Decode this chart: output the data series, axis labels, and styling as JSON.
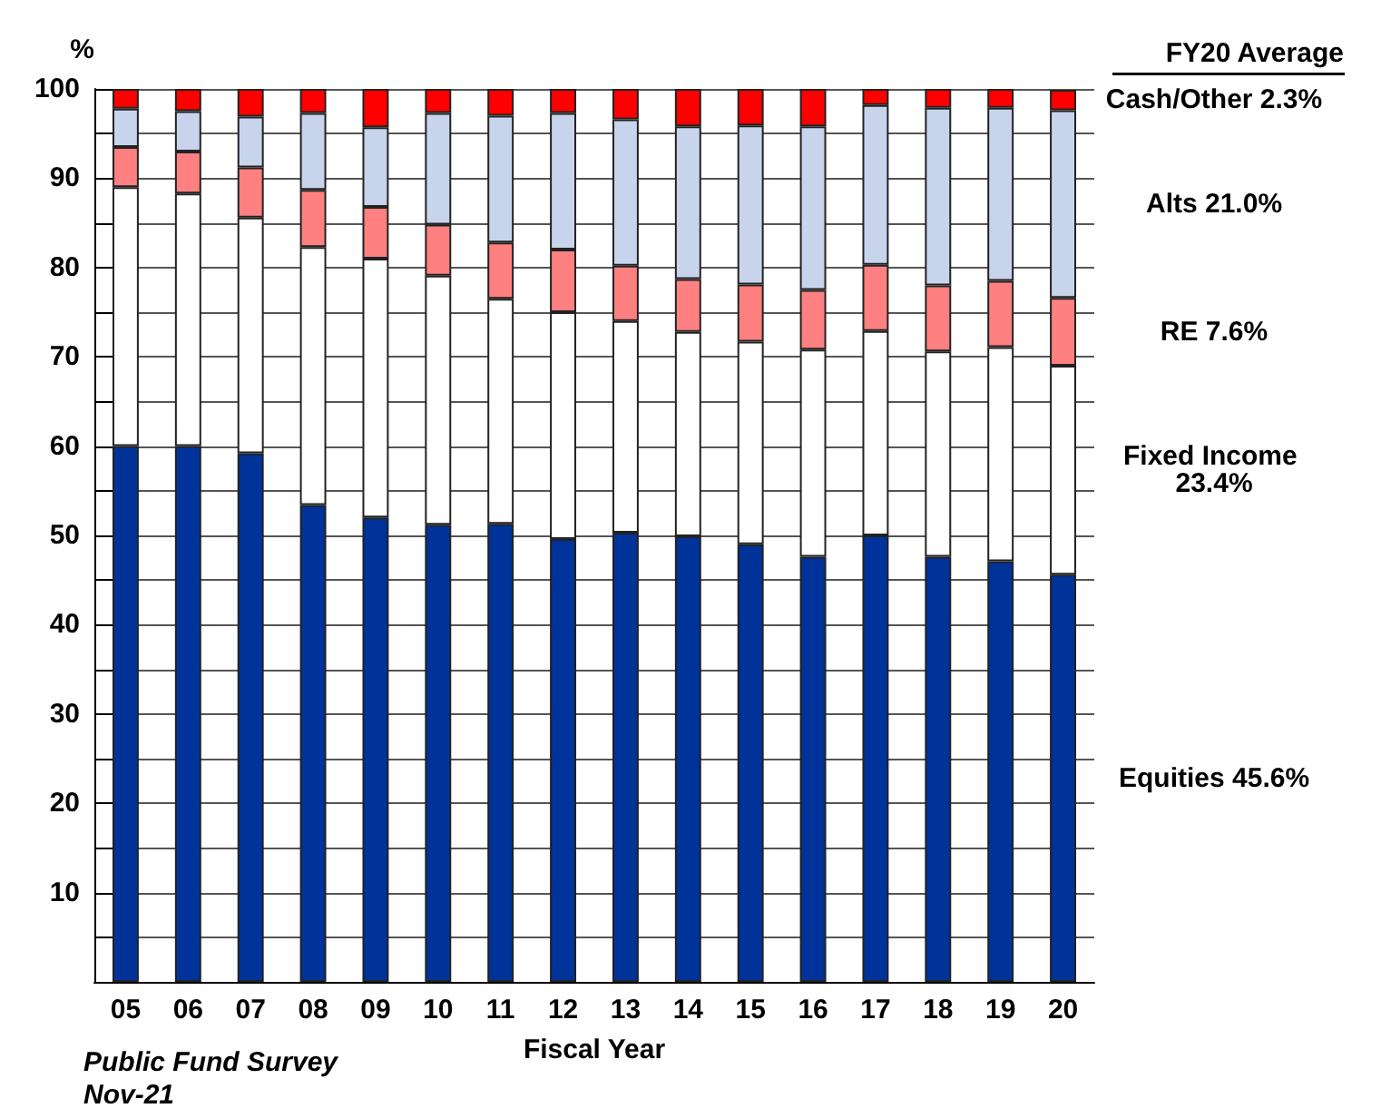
{
  "chart_data": {
    "type": "bar",
    "stacked": true,
    "ylabel": "%",
    "xlabel": "Fiscal Year",
    "legend_title": "FY20 Average",
    "categories": [
      "05",
      "06",
      "07",
      "08",
      "09",
      "10",
      "11",
      "12",
      "13",
      "14",
      "15",
      "16",
      "17",
      "18",
      "19",
      "20"
    ],
    "series": [
      {
        "name": "Equities 45.6%",
        "color": "#003399",
        "values": [
          60,
          60,
          59.2,
          53.4,
          52,
          51.2,
          51.3,
          49.6,
          50.3,
          49.9,
          49,
          47.6,
          50,
          47.6,
          47.1,
          45.6
        ]
      },
      {
        "name": "Fixed Income 23.4%",
        "color": "#ffffff",
        "values": [
          29,
          28.3,
          26.4,
          28.9,
          29,
          27.9,
          25.2,
          25.4,
          23.7,
          22.9,
          22.7,
          23.2,
          22.9,
          23,
          24,
          23.4
        ]
      },
      {
        "name": "RE 7.6%",
        "color": "#ff8080",
        "values": [
          4.5,
          4.7,
          5.6,
          6.4,
          5.8,
          5.7,
          6.3,
          7,
          6.2,
          5.9,
          6.4,
          6.7,
          7.4,
          7.4,
          7.4,
          7.6
        ]
      },
      {
        "name": "Alts 21.0%",
        "color": "#c8d4ec",
        "values": [
          4.3,
          4.5,
          5.7,
          8.6,
          8.9,
          12.5,
          14.2,
          15.3,
          16.4,
          17.1,
          17.8,
          18.3,
          17.9,
          19.9,
          19.4,
          21.0
        ]
      },
      {
        "name": "Cash/Other 2.3%",
        "color": "#ff0000",
        "values": [
          2.2,
          2.5,
          3.1,
          2.7,
          4.3,
          2.7,
          3,
          2.7,
          3.4,
          4.2,
          4.1,
          4.2,
          1.8,
          2.1,
          2.1,
          2.3
        ]
      }
    ],
    "ylim": [
      0,
      100
    ],
    "yticks": [
      {
        "value": 0,
        "label": null
      },
      {
        "value": 5,
        "label": null
      },
      10,
      {
        "value": 15,
        "label": null
      },
      20,
      {
        "value": 25,
        "label": null
      },
      30,
      {
        "value": 35,
        "label": null
      },
      40,
      {
        "value": 45,
        "label": null
      },
      50,
      {
        "value": 55,
        "label": null
      },
      60,
      {
        "value": 65,
        "label": null
      },
      70,
      {
        "value": 75,
        "label": null
      },
      80,
      {
        "value": 85,
        "label": null
      },
      90,
      {
        "value": 95,
        "label": null
      },
      100
    ],
    "grid": true,
    "legend": "right",
    "annotations": [
      "Public Fund Survey",
      "Nov-21"
    ]
  }
}
